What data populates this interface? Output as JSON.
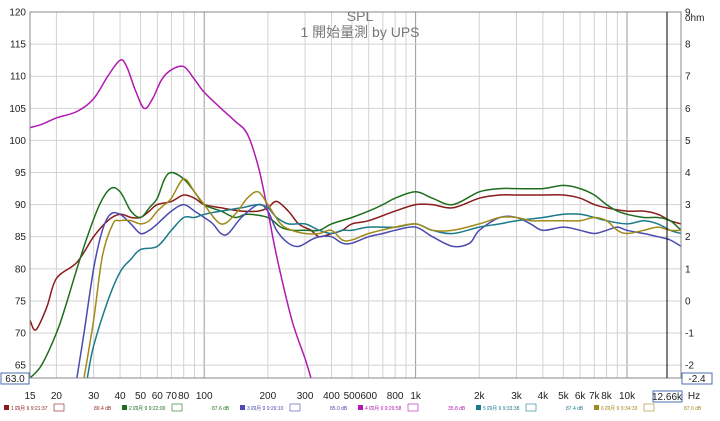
{
  "chart_data": {
    "type": "line",
    "title": "SPL",
    "subtitle": "1 開始量測  by UPS",
    "xlabel": "Hz",
    "right_axis_unit": "ohm",
    "x_scale": "log",
    "xlim": [
      15,
      18000
    ],
    "ylim": [
      63,
      120
    ],
    "y2lim": [
      -2.4,
      9
    ],
    "grid": true,
    "x_tick_labels": [
      {
        "label": "15",
        "value": 15
      },
      {
        "label": "20",
        "value": 20
      },
      {
        "label": "30",
        "value": 30
      },
      {
        "label": "40",
        "value": 40
      },
      {
        "label": "50",
        "value": 50
      },
      {
        "label": "60",
        "value": 60
      },
      {
        "label": "70",
        "value": 70
      },
      {
        "label": "80",
        "value": 80
      },
      {
        "label": "100",
        "value": 100
      },
      {
        "label": "200",
        "value": 200
      },
      {
        "label": "300",
        "value": 300
      },
      {
        "label": "400",
        "value": 400
      },
      {
        "label": "500",
        "value": 500
      },
      {
        "label": "600",
        "value": 600
      },
      {
        "label": "800",
        "value": 800
      },
      {
        "label": "1k",
        "value": 1000
      },
      {
        "label": "2k",
        "value": 2000
      },
      {
        "label": "3k",
        "value": 3000
      },
      {
        "label": "4k",
        "value": 4000
      },
      {
        "label": "5k",
        "value": 5000
      },
      {
        "label": "6k",
        "value": 6000
      },
      {
        "label": "7k",
        "value": 7000
      },
      {
        "label": "8k",
        "value": 8000
      },
      {
        "label": "10k",
        "value": 10000
      }
    ],
    "y_tick_labels": [
      "65",
      "70",
      "75",
      "80",
      "85",
      "90",
      "95",
      "100",
      "105",
      "110",
      "115",
      "120"
    ],
    "y2_tick_labels": [
      "-2",
      "-1",
      "0",
      "1",
      "2",
      "3",
      "4",
      "5",
      "6",
      "7",
      "8",
      "9"
    ],
    "cursor": {
      "x_readout": "12.66k",
      "y_readout": "63.0",
      "y2_readout": "-2.4"
    },
    "series": [
      {
        "color": "#8b1a1a",
        "legend_label": "1 四月 9 9:21:37",
        "legend_value": "89.4 dB",
        "points": [
          [
            15,
            72
          ],
          [
            16,
            70.5
          ],
          [
            18,
            74
          ],
          [
            20,
            78.5
          ],
          [
            25,
            81
          ],
          [
            30,
            85
          ],
          [
            35,
            87.5
          ],
          [
            40,
            88.5
          ],
          [
            45,
            88
          ],
          [
            50,
            88
          ],
          [
            55,
            89
          ],
          [
            60,
            90
          ],
          [
            70,
            90.5
          ],
          [
            80,
            91.5
          ],
          [
            90,
            91
          ],
          [
            100,
            90
          ],
          [
            120,
            89.5
          ],
          [
            150,
            89
          ],
          [
            180,
            89
          ],
          [
            200,
            89.5
          ],
          [
            220,
            90.5
          ],
          [
            250,
            89
          ],
          [
            280,
            87
          ],
          [
            320,
            86
          ],
          [
            350,
            85
          ],
          [
            400,
            85.5
          ],
          [
            450,
            86
          ],
          [
            500,
            87
          ],
          [
            600,
            87.5
          ],
          [
            800,
            89
          ],
          [
            1000,
            90
          ],
          [
            1200,
            90
          ],
          [
            1500,
            89.5
          ],
          [
            2000,
            91
          ],
          [
            2500,
            91.5
          ],
          [
            3000,
            91.5
          ],
          [
            4000,
            91.5
          ],
          [
            5000,
            91.5
          ],
          [
            6000,
            91
          ],
          [
            7000,
            90
          ],
          [
            8000,
            89.5
          ],
          [
            10000,
            89
          ],
          [
            12000,
            89
          ],
          [
            14000,
            88.5
          ],
          [
            16000,
            87.5
          ],
          [
            18000,
            87
          ]
        ]
      },
      {
        "color": "#1e6e1e",
        "legend_label": "2 四月 9 9:22:00",
        "legend_value": "87.6 dB",
        "points": [
          [
            15,
            63
          ],
          [
            17,
            65
          ],
          [
            20,
            70
          ],
          [
            22,
            74
          ],
          [
            25,
            80
          ],
          [
            28,
            85
          ],
          [
            32,
            90
          ],
          [
            36,
            92.5
          ],
          [
            40,
            92
          ],
          [
            45,
            89
          ],
          [
            50,
            88
          ],
          [
            55,
            89.5
          ],
          [
            60,
            91
          ],
          [
            65,
            94
          ],
          [
            70,
            95
          ],
          [
            80,
            94
          ],
          [
            90,
            92
          ],
          [
            100,
            90
          ],
          [
            120,
            89
          ],
          [
            140,
            88
          ],
          [
            160,
            88.5
          ],
          [
            200,
            88
          ],
          [
            230,
            86.5
          ],
          [
            260,
            86
          ],
          [
            300,
            86
          ],
          [
            350,
            86
          ],
          [
            400,
            87
          ],
          [
            500,
            88
          ],
          [
            600,
            89
          ],
          [
            700,
            90
          ],
          [
            800,
            91
          ],
          [
            1000,
            92
          ],
          [
            1200,
            91
          ],
          [
            1500,
            90
          ],
          [
            2000,
            92
          ],
          [
            2500,
            92.5
          ],
          [
            3000,
            92.5
          ],
          [
            4000,
            92.5
          ],
          [
            5000,
            93
          ],
          [
            6000,
            92.5
          ],
          [
            7000,
            91.5
          ],
          [
            8000,
            90
          ],
          [
            9000,
            89
          ],
          [
            10000,
            88.5
          ],
          [
            12000,
            88
          ],
          [
            14000,
            88
          ],
          [
            16000,
            87.5
          ],
          [
            18000,
            86
          ]
        ]
      },
      {
        "color": "#4a4ab0",
        "legend_label": "3 四月 9 9:29:10",
        "legend_value": "85.0 dB",
        "points": [
          [
            25,
            63
          ],
          [
            27,
            70
          ],
          [
            30,
            80
          ],
          [
            33,
            86
          ],
          [
            36,
            88.5
          ],
          [
            40,
            88.5
          ],
          [
            45,
            87
          ],
          [
            50,
            85.5
          ],
          [
            55,
            86
          ],
          [
            60,
            87
          ],
          [
            70,
            89
          ],
          [
            80,
            90
          ],
          [
            90,
            89
          ],
          [
            100,
            88
          ],
          [
            110,
            87
          ],
          [
            120,
            85.5
          ],
          [
            130,
            85.5
          ],
          [
            150,
            88
          ],
          [
            180,
            90
          ],
          [
            200,
            89
          ],
          [
            220,
            86
          ],
          [
            250,
            84
          ],
          [
            280,
            83.5
          ],
          [
            320,
            84.5
          ],
          [
            350,
            85
          ],
          [
            400,
            85
          ],
          [
            450,
            84
          ],
          [
            500,
            84
          ],
          [
            600,
            85
          ],
          [
            700,
            85.5
          ],
          [
            800,
            86
          ],
          [
            1000,
            86.5
          ],
          [
            1200,
            85
          ],
          [
            1500,
            83.5
          ],
          [
            1800,
            84
          ],
          [
            2000,
            86
          ],
          [
            2500,
            88
          ],
          [
            3000,
            88
          ],
          [
            3500,
            87
          ],
          [
            4000,
            86
          ],
          [
            5000,
            86.5
          ],
          [
            6000,
            86
          ],
          [
            7000,
            85.5
          ],
          [
            8000,
            86
          ],
          [
            9000,
            86.5
          ],
          [
            10000,
            86
          ],
          [
            12000,
            85.5
          ],
          [
            14000,
            85
          ],
          [
            16000,
            84.5
          ],
          [
            18000,
            83.5
          ]
        ]
      },
      {
        "color": "#b01ab0",
        "legend_label": "4 四月 9 9:29:58",
        "legend_value": "35.8 dB",
        "points": [
          [
            15,
            102
          ],
          [
            17,
            102.5
          ],
          [
            20,
            103.5
          ],
          [
            25,
            104.5
          ],
          [
            30,
            106.5
          ],
          [
            35,
            110
          ],
          [
            40,
            112.5
          ],
          [
            43,
            111.5
          ],
          [
            47,
            108
          ],
          [
            52,
            105
          ],
          [
            57,
            106.5
          ],
          [
            63,
            109.5
          ],
          [
            70,
            111
          ],
          [
            80,
            111.5
          ],
          [
            90,
            109.5
          ],
          [
            100,
            107.5
          ],
          [
            120,
            105
          ],
          [
            140,
            103
          ],
          [
            160,
            101
          ],
          [
            180,
            96
          ],
          [
            200,
            89
          ],
          [
            220,
            82
          ],
          [
            260,
            72
          ],
          [
            300,
            66
          ],
          [
            320,
            63
          ]
        ]
      },
      {
        "color": "#1a7a8a",
        "legend_label": "5 四月 9 9:33:38",
        "legend_value": "87.4 dB",
        "points": [
          [
            28,
            63
          ],
          [
            30,
            68
          ],
          [
            35,
            75
          ],
          [
            40,
            79.5
          ],
          [
            45,
            81.5
          ],
          [
            50,
            83
          ],
          [
            60,
            83.5
          ],
          [
            70,
            86
          ],
          [
            80,
            88
          ],
          [
            90,
            88
          ],
          [
            100,
            88.5
          ],
          [
            120,
            89
          ],
          [
            150,
            89.5
          ],
          [
            180,
            90
          ],
          [
            200,
            89.5
          ],
          [
            220,
            88
          ],
          [
            250,
            87
          ],
          [
            300,
            87
          ],
          [
            350,
            86
          ],
          [
            400,
            85.5
          ],
          [
            450,
            86
          ],
          [
            500,
            86
          ],
          [
            600,
            86.5
          ],
          [
            800,
            86.5
          ],
          [
            1000,
            87
          ],
          [
            1200,
            86
          ],
          [
            1500,
            85.5
          ],
          [
            2000,
            86.5
          ],
          [
            2500,
            87
          ],
          [
            3000,
            87.5
          ],
          [
            4000,
            88
          ],
          [
            5000,
            88.5
          ],
          [
            6000,
            88.5
          ],
          [
            7000,
            88
          ],
          [
            8000,
            87.5
          ],
          [
            10000,
            87
          ],
          [
            12000,
            87.5
          ],
          [
            14000,
            87
          ],
          [
            16000,
            86
          ],
          [
            18000,
            85.5
          ]
        ]
      },
      {
        "color": "#a08a1a",
        "legend_label": "6 四月 9 9:34:33",
        "legend_value": "87.0 dB",
        "points": [
          [
            27,
            63
          ],
          [
            30,
            72
          ],
          [
            33,
            82
          ],
          [
            37,
            87
          ],
          [
            40,
            87.5
          ],
          [
            45,
            87.5
          ],
          [
            50,
            87
          ],
          [
            55,
            87.5
          ],
          [
            60,
            89
          ],
          [
            65,
            90
          ],
          [
            70,
            91
          ],
          [
            80,
            94
          ],
          [
            90,
            92
          ],
          [
            100,
            90
          ],
          [
            120,
            87
          ],
          [
            140,
            88.5
          ],
          [
            160,
            91
          ],
          [
            180,
            92
          ],
          [
            200,
            90
          ],
          [
            230,
            87
          ],
          [
            260,
            86
          ],
          [
            300,
            85.5
          ],
          [
            350,
            85.5
          ],
          [
            400,
            86
          ],
          [
            450,
            84.5
          ],
          [
            500,
            84.5
          ],
          [
            600,
            85.5
          ],
          [
            800,
            86.5
          ],
          [
            1000,
            87
          ],
          [
            1200,
            86
          ],
          [
            1500,
            86
          ],
          [
            2000,
            87
          ],
          [
            2500,
            88
          ],
          [
            3000,
            88
          ],
          [
            3500,
            87.5
          ],
          [
            4000,
            87.5
          ],
          [
            5000,
            87.5
          ],
          [
            6000,
            87.5
          ],
          [
            7000,
            88
          ],
          [
            8000,
            87.5
          ],
          [
            9000,
            86
          ],
          [
            10000,
            85.5
          ],
          [
            12000,
            86
          ],
          [
            14000,
            86.5
          ],
          [
            16000,
            86
          ],
          [
            18000,
            86
          ]
        ]
      }
    ]
  }
}
